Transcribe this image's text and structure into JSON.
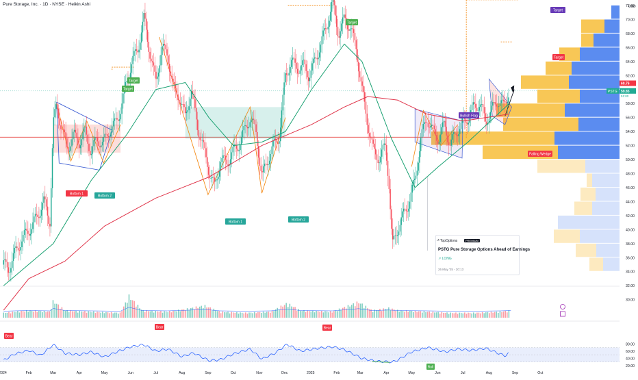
{
  "header": {
    "title": "Pure Storage, Inc. · 1D · NYSE · Heikin Ashi"
  },
  "chart_data": {
    "type": "candlestick",
    "symbol": "PSTG",
    "chart_style": "Heikin Ashi",
    "price_axis": {
      "currency": "USD",
      "ticks": [
        "72.00",
        "70.00",
        "68.00",
        "66.00",
        "64.00",
        "62.00",
        "60.00",
        "58.00",
        "56.00",
        "54.00",
        "52.00",
        "50.00",
        "48.00",
        "46.00",
        "44.00",
        "42.00",
        "40.00",
        "38.00",
        "36.00",
        "34.00",
        "32.00",
        "30.00"
      ],
      "ylim": [
        29.5,
        73.8
      ]
    },
    "rsi_axis": {
      "ticks": [
        "80.00",
        "60.00",
        "40.00",
        "20.00"
      ],
      "ylim": [
        20,
        80
      ],
      "band": [
        30,
        70
      ]
    },
    "time_axis": {
      "ticks": [
        "2024",
        "Feb",
        "Mar",
        "Apr",
        "May",
        "Jun",
        "Jul",
        "Aug",
        "Sep",
        "Oct",
        "Nov",
        "Dec",
        "2025",
        "Feb",
        "Mar",
        "Apr",
        "May",
        "Jun",
        "Jul",
        "Aug",
        "Sep",
        "Oct"
      ]
    },
    "last_price": {
      "value": "60.76",
      "ticker": "PSTG",
      "close": "59.85",
      "countdown": "51:00"
    },
    "horizontal_line": 53.2,
    "price_path": [
      [
        "2024-01-02",
        35
      ],
      [
        "2024-01-08",
        34.4
      ],
      [
        "2024-01-15",
        36.5
      ],
      [
        "2024-01-22",
        38.2
      ],
      [
        "2024-01-29",
        39.5
      ],
      [
        "2024-02-05",
        40.5
      ],
      [
        "2024-02-12",
        42.2
      ],
      [
        "2024-02-19",
        44
      ],
      [
        "2024-02-26",
        41
      ],
      [
        "2024-03-01",
        55
      ],
      [
        "2024-03-05",
        57.8
      ],
      [
        "2024-03-11",
        54.5
      ],
      [
        "2024-03-18",
        51.5
      ],
      [
        "2024-03-25",
        53.5
      ],
      [
        "2024-04-01",
        52.5
      ],
      [
        "2024-04-08",
        54
      ],
      [
        "2024-04-15",
        51
      ],
      [
        "2024-04-22",
        53
      ],
      [
        "2024-04-29",
        52.2
      ],
      [
        "2024-05-06",
        54
      ],
      [
        "2024-05-13",
        55
      ],
      [
        "2024-05-20",
        57
      ],
      [
        "2024-05-27",
        61
      ],
      [
        "2024-06-03",
        64
      ],
      [
        "2024-06-10",
        66
      ],
      [
        "2024-06-17",
        70.2
      ],
      [
        "2024-06-24",
        65.2
      ],
      [
        "2024-07-01",
        61
      ],
      [
        "2024-07-08",
        66
      ],
      [
        "2024-07-15",
        65
      ],
      [
        "2024-07-22",
        60
      ],
      [
        "2024-07-29",
        59
      ],
      [
        "2024-08-05",
        56
      ],
      [
        "2024-08-12",
        60
      ],
      [
        "2024-08-19",
        55
      ],
      [
        "2024-08-26",
        52
      ],
      [
        "2024-09-02",
        48.5
      ],
      [
        "2024-09-09",
        46
      ],
      [
        "2024-09-16",
        50
      ],
      [
        "2024-09-23",
        49.5
      ],
      [
        "2024-09-30",
        51
      ],
      [
        "2024-10-07",
        52
      ],
      [
        "2024-10-14",
        54
      ],
      [
        "2024-10-21",
        56
      ],
      [
        "2024-10-28",
        54
      ],
      [
        "2024-11-04",
        47.5
      ],
      [
        "2024-11-11",
        50
      ],
      [
        "2024-11-18",
        52
      ],
      [
        "2024-11-25",
        53.5
      ],
      [
        "2024-12-02",
        62
      ],
      [
        "2024-12-09",
        64
      ],
      [
        "2024-12-16",
        63
      ],
      [
        "2024-12-23",
        63.5
      ],
      [
        "2024-12-30",
        62
      ],
      [
        "2025-01-06",
        64
      ],
      [
        "2025-01-13",
        66.5
      ],
      [
        "2025-01-20",
        69
      ],
      [
        "2025-01-27",
        72.5
      ],
      [
        "2025-02-03",
        68
      ],
      [
        "2025-02-10",
        70
      ],
      [
        "2025-02-17",
        69
      ],
      [
        "2025-02-24",
        66
      ],
      [
        "2025-03-03",
        60
      ],
      [
        "2025-03-10",
        55
      ],
      [
        "2025-03-17",
        51
      ],
      [
        "2025-03-24",
        50.2
      ],
      [
        "2025-03-31",
        52
      ],
      [
        "2025-04-04",
        47
      ],
      [
        "2025-04-08",
        37.5
      ],
      [
        "2025-04-14",
        40
      ],
      [
        "2025-04-21",
        42
      ],
      [
        "2025-04-28",
        44
      ],
      [
        "2025-05-05",
        47
      ],
      [
        "2025-05-12",
        53
      ],
      [
        "2025-05-19",
        56
      ],
      [
        "2025-05-26",
        54
      ],
      [
        "2025-06-02",
        53
      ],
      [
        "2025-06-09",
        55
      ],
      [
        "2025-06-16",
        52
      ],
      [
        "2025-06-23",
        54
      ],
      [
        "2025-06-30",
        55
      ],
      [
        "2025-07-07",
        56
      ],
      [
        "2025-07-14",
        57.5
      ],
      [
        "2025-07-21",
        58
      ],
      [
        "2025-07-28",
        55.5
      ],
      [
        "2025-08-04",
        57
      ],
      [
        "2025-08-11",
        58.5
      ],
      [
        "2025-08-18",
        57.5
      ],
      [
        "2025-08-25",
        59.8
      ]
    ],
    "ema_green": [
      [
        "2024-01-02",
        32
      ],
      [
        "2024-03-01",
        38
      ],
      [
        "2024-04-15",
        47
      ],
      [
        "2024-05-27",
        53.5
      ],
      [
        "2024-07-01",
        60
      ],
      [
        "2024-08-05",
        61
      ],
      [
        "2024-09-02",
        56
      ],
      [
        "2024-10-01",
        52
      ],
      [
        "2024-11-04",
        52.5
      ],
      [
        "2024-12-02",
        54
      ],
      [
        "2025-01-02",
        60
      ],
      [
        "2025-02-10",
        66.5
      ],
      [
        "2025-03-03",
        64
      ],
      [
        "2025-04-07",
        53
      ],
      [
        "2025-05-05",
        46
      ],
      [
        "2025-06-02",
        49
      ],
      [
        "2025-07-07",
        52.5
      ],
      [
        "2025-08-25",
        58
      ]
    ],
    "ema_red": [
      [
        "2024-01-02",
        28.5
      ],
      [
        "2024-02-01",
        33
      ],
      [
        "2024-03-15",
        35.5
      ],
      [
        "2024-05-01",
        40.5
      ],
      [
        "2024-07-01",
        44.5
      ],
      [
        "2024-09-02",
        47.5
      ],
      [
        "2024-11-04",
        52
      ],
      [
        "2025-01-02",
        55
      ],
      [
        "2025-02-10",
        57.5
      ],
      [
        "2025-03-10",
        59
      ],
      [
        "2025-04-14",
        58.5
      ],
      [
        "2025-05-19",
        56.5
      ],
      [
        "2025-07-01",
        55.5
      ],
      [
        "2025-08-25",
        56.5
      ]
    ],
    "volume": [
      [
        "2024-01-02",
        4
      ],
      [
        "2024-01-15",
        5
      ],
      [
        "2024-02-01",
        6
      ],
      [
        "2024-02-26",
        5
      ],
      [
        "2024-03-01",
        14
      ],
      [
        "2024-03-15",
        6
      ],
      [
        "2024-04-15",
        5
      ],
      [
        "2024-05-20",
        4
      ],
      [
        "2024-05-30",
        18
      ],
      [
        "2024-06-15",
        6
      ],
      [
        "2024-07-15",
        5
      ],
      [
        "2024-08-05",
        7
      ],
      [
        "2024-08-28",
        10
      ],
      [
        "2024-09-15",
        5
      ],
      [
        "2024-10-15",
        4
      ],
      [
        "2024-11-15",
        5
      ],
      [
        "2024-12-04",
        12
      ],
      [
        "2024-12-20",
        6
      ],
      [
        "2025-01-27",
        5
      ],
      [
        "2025-02-27",
        13
      ],
      [
        "2025-03-15",
        6
      ],
      [
        "2025-04-04",
        8
      ],
      [
        "2025-04-15",
        6
      ],
      [
        "2025-05-20",
        5
      ],
      [
        "2025-06-15",
        4
      ],
      [
        "2025-07-15",
        4
      ],
      [
        "2025-08-15",
        5
      ],
      [
        "2025-08-27",
        6
      ]
    ],
    "rsi": [
      [
        "2024-01-02",
        35
      ],
      [
        "2024-01-15",
        52
      ],
      [
        "2024-02-01",
        62
      ],
      [
        "2024-02-15",
        48
      ],
      [
        "2024-03-01",
        78
      ],
      [
        "2024-03-15",
        54
      ],
      [
        "2024-04-01",
        50
      ],
      [
        "2024-04-15",
        58
      ],
      [
        "2024-05-01",
        44
      ],
      [
        "2024-05-20",
        62
      ],
      [
        "2024-06-01",
        72
      ],
      [
        "2024-06-17",
        78
      ],
      [
        "2024-07-01",
        60
      ],
      [
        "2024-07-15",
        66
      ],
      [
        "2024-08-01",
        45
      ],
      [
        "2024-08-15",
        55
      ],
      [
        "2024-09-02",
        34
      ],
      [
        "2024-09-15",
        36
      ],
      [
        "2024-10-01",
        52
      ],
      [
        "2024-10-21",
        66
      ],
      [
        "2024-11-04",
        38
      ],
      [
        "2024-11-20",
        55
      ],
      [
        "2024-12-04",
        79
      ],
      [
        "2024-12-20",
        60
      ],
      [
        "2025-01-10",
        68
      ],
      [
        "2025-01-27",
        72
      ],
      [
        "2025-02-10",
        64
      ],
      [
        "2025-03-03",
        40
      ],
      [
        "2025-03-20",
        32
      ],
      [
        "2025-04-08",
        30
      ],
      [
        "2025-04-15",
        36
      ],
      [
        "2025-05-01",
        58
      ],
      [
        "2025-05-20",
        70
      ],
      [
        "2025-06-10",
        58
      ],
      [
        "2025-06-25",
        66
      ],
      [
        "2025-07-10",
        62
      ],
      [
        "2025-07-28",
        68
      ],
      [
        "2025-08-10",
        56
      ],
      [
        "2025-08-20",
        47
      ],
      [
        "2025-08-28",
        60
      ]
    ]
  },
  "annotations": {
    "pattern_labels": {
      "bottom1_a": "Bottom 1",
      "bottom2_a": "Bottom 2",
      "bottom1_b": "Bottom 1",
      "bottom2_b": "Bottom 2",
      "bull_flag": "Bullish Flag",
      "falling_wedge": "Falling Wedge"
    },
    "targets": {
      "t1": "Target",
      "t2": "Target",
      "t3": "Target",
      "t4": "Target",
      "t5": "Target"
    },
    "rsi_signals": {
      "bear1": "Bear",
      "bear2": "Bear",
      "bear3": "Bear",
      "bull1": "Bull"
    }
  },
  "idea_card": {
    "brand": "TopOptions",
    "badge": "PREMIUM",
    "headline": "PSTG Pure Storage Options Ahead of Earnings",
    "side": "↗ LONG",
    "timestamp": "26 May '25 - 20:13"
  },
  "colors": {
    "up": "#22ab94",
    "down": "#f7525f",
    "ema_green": "#1aa172",
    "ema_red": "#e0354a",
    "rsi_line": "#2962ff",
    "rsi_band": "#e9eefc",
    "pattern": "#f48c1a",
    "target": "#4caf50",
    "bear": "#f23645",
    "bull": "#4caf50",
    "flag": "#673ab7",
    "vp_blue": "#5b8cf0",
    "vp_blue_light": "#d6e2fb",
    "vp_yellow": "#f8c756",
    "vp_yellow_light": "#fdeac0"
  }
}
